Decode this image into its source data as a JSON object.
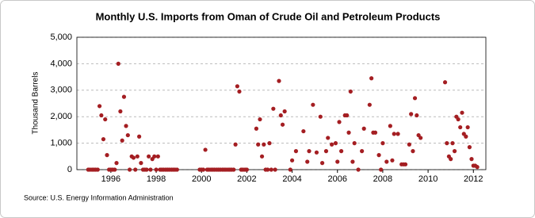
{
  "chart_data": {
    "type": "scatter",
    "title": "Monthly U.S. Imports from Oman of Crude Oil and Petroleum Products",
    "ylabel": "Thousand Barrels",
    "source": "Source: U.S. Energy Information Administration",
    "xlim": [
      1994.5,
      2012.55
    ],
    "xticks": [
      1996,
      1998,
      2000,
      2002,
      2004,
      2006,
      2008,
      2010,
      2012
    ],
    "ylim": [
      0,
      5000
    ],
    "yticks": [
      0,
      {
        "value": 1000,
        "label": "1,000"
      },
      {
        "value": 2000,
        "label": "2,000"
      },
      {
        "value": 3000,
        "label": "3,000"
      },
      {
        "value": 4000,
        "label": "4,000"
      },
      {
        "value": 5000,
        "label": "5,000"
      }
    ],
    "grid": true,
    "color": "#a41e22",
    "x": [
      1995.0,
      1995.08,
      1995.17,
      1995.25,
      1995.33,
      1995.42,
      1995.5,
      1995.58,
      1995.67,
      1995.75,
      1995.83,
      1995.92,
      1996.0,
      1996.08,
      1996.17,
      1996.25,
      1996.33,
      1996.42,
      1996.5,
      1996.58,
      1996.67,
      1996.75,
      1996.83,
      1996.92,
      1997.0,
      1997.08,
      1997.17,
      1997.25,
      1997.33,
      1997.42,
      1997.5,
      1997.58,
      1997.67,
      1997.75,
      1997.83,
      1997.92,
      1998.0,
      1998.08,
      1998.17,
      1998.25,
      1998.33,
      1998.42,
      1998.5,
      1998.58,
      1998.67,
      1998.75,
      1998.83,
      1998.92,
      1999.92,
      2000.0,
      2000.08,
      2000.17,
      2000.25,
      2000.33,
      2000.42,
      2000.5,
      2000.58,
      2000.67,
      2000.75,
      2000.83,
      2000.92,
      2001.0,
      2001.08,
      2001.17,
      2001.25,
      2001.33,
      2001.42,
      2001.5,
      2001.58,
      2001.67,
      2001.75,
      2001.83,
      2001.92,
      2002.0,
      2002.42,
      2002.5,
      2002.58,
      2002.67,
      2002.75,
      2002.83,
      2002.92,
      2003.0,
      2003.08,
      2003.17,
      2003.25,
      2003.42,
      2003.5,
      2003.58,
      2003.67,
      2003.92,
      2004.0,
      2004.17,
      2004.5,
      2004.67,
      2004.75,
      2004.92,
      2005.08,
      2005.25,
      2005.33,
      2005.5,
      2005.58,
      2005.75,
      2005.92,
      2006.0,
      2006.08,
      2006.17,
      2006.33,
      2006.42,
      2006.5,
      2006.58,
      2006.67,
      2006.75,
      2006.92,
      2007.08,
      2007.17,
      2007.42,
      2007.5,
      2007.58,
      2007.67,
      2007.83,
      2007.92,
      2008.0,
      2008.17,
      2008.33,
      2008.42,
      2008.5,
      2008.67,
      2008.83,
      2008.92,
      2009.0,
      2009.17,
      2009.25,
      2009.33,
      2009.42,
      2009.5,
      2009.58,
      2009.67,
      2010.75,
      2010.83,
      2010.92,
      2011.0,
      2011.08,
      2011.17,
      2011.25,
      2011.33,
      2011.42,
      2011.5,
      2011.58,
      2011.67,
      2011.75,
      2011.83,
      2011.92,
      2012.0,
      2012.08,
      2012.17
    ],
    "values": [
      0,
      0,
      0,
      0,
      0,
      0,
      2400,
      2050,
      1150,
      1900,
      550,
      0,
      0,
      0,
      0,
      250,
      4000,
      2200,
      1100,
      2750,
      1650,
      1300,
      0,
      500,
      450,
      0,
      500,
      1250,
      250,
      0,
      0,
      0,
      500,
      0,
      400,
      500,
      0,
      500,
      0,
      0,
      0,
      0,
      0,
      0,
      0,
      0,
      0,
      0,
      0,
      0,
      0,
      750,
      0,
      0,
      0,
      0,
      0,
      0,
      0,
      0,
      0,
      0,
      0,
      0,
      0,
      0,
      0,
      950,
      3150,
      2950,
      0,
      0,
      0,
      0,
      1550,
      950,
      1900,
      500,
      950,
      0,
      0,
      1000,
      0,
      2300,
      0,
      3350,
      2050,
      1700,
      2200,
      0,
      350,
      700,
      1450,
      300,
      700,
      2450,
      650,
      2000,
      250,
      700,
      1200,
      950,
      1000,
      300,
      1800,
      700,
      2050,
      2050,
      1400,
      2950,
      300,
      1000,
      0,
      700,
      1550,
      2450,
      3450,
      1400,
      1400,
      550,
      0,
      1000,
      300,
      1650,
      350,
      1350,
      1350,
      200,
      200,
      200,
      950,
      2100,
      700,
      2700,
      2050,
      1300,
      1200,
      3300,
      1000,
      500,
      400,
      1000,
      700,
      2000,
      1900,
      1600,
      2150,
      1350,
      1250,
      1600,
      850,
      400,
      150,
      150,
      100
    ]
  }
}
